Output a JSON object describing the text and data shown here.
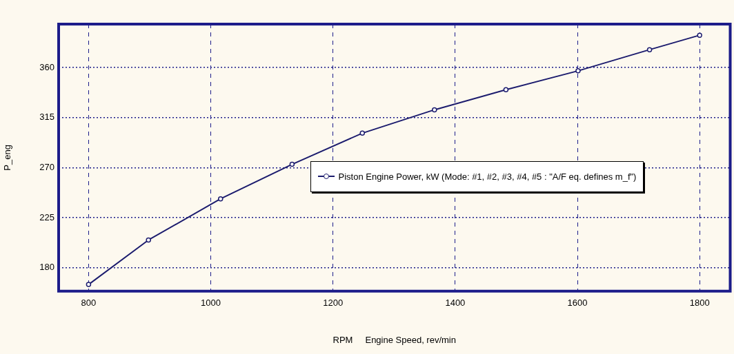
{
  "chart_data": {
    "type": "line",
    "xlabel": "RPM     Engine Speed, rev/min",
    "ylabel": "P_eng",
    "x": [
      800,
      898,
      1016,
      1133,
      1248,
      1366,
      1483,
      1601,
      1718,
      1800
    ],
    "series": [
      {
        "name": "Piston Engine Power, kW (Mode: #1, #2, #3, #4, #5 : \"A/F eq. defines m_f\")",
        "color": "#1c1c6e",
        "values": [
          165,
          205,
          242,
          273,
          301,
          322,
          340,
          357,
          376,
          389
        ]
      }
    ],
    "xlim": [
      751,
      1850
    ],
    "xticks": [
      800,
      1000,
      1200,
      1400,
      1600,
      1800
    ],
    "ylim": [
      159,
      399
    ],
    "yticks": [
      180,
      225,
      270,
      315,
      360
    ],
    "grid": true,
    "legend": "right",
    "marker": "circle",
    "line_style": "solid"
  }
}
